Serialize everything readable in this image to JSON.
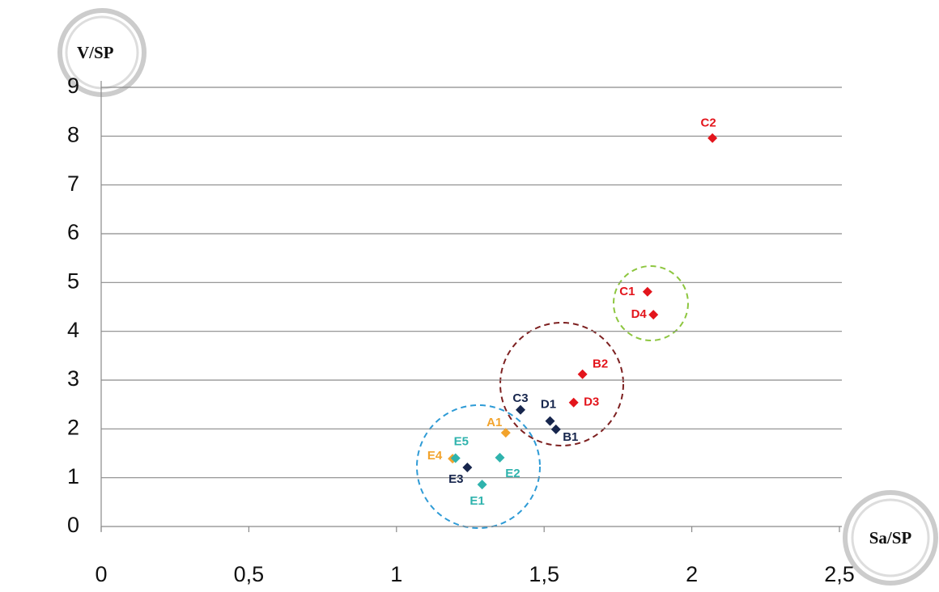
{
  "chart_data": {
    "type": "scatter",
    "x_label": "Sa/SP",
    "y_label": "V/SP",
    "xlim": [
      0,
      2.5
    ],
    "ylim": [
      0,
      9
    ],
    "xticks": [
      0,
      {
        "value": 0.5,
        "label": "0,5"
      },
      1,
      {
        "value": 1.5,
        "label": "1,5"
      },
      2,
      {
        "value": 2.5,
        "label": "2,5"
      }
    ],
    "yticks": [
      0,
      1,
      2,
      3,
      4,
      5,
      6,
      7,
      8,
      9
    ],
    "grid": true,
    "points": [
      {
        "label": "C2",
        "x": 2.07,
        "y": 7.96,
        "color": "#e3151c"
      },
      {
        "label": "C1",
        "x": 1.85,
        "y": 4.81,
        "color": "#e3151c"
      },
      {
        "label": "D4",
        "x": 1.87,
        "y": 4.34,
        "color": "#e3151c"
      },
      {
        "label": "B2",
        "x": 1.63,
        "y": 3.12,
        "color": "#e3151c"
      },
      {
        "label": "D3",
        "x": 1.6,
        "y": 2.54,
        "color": "#e3151c"
      },
      {
        "label": "C3",
        "x": 1.42,
        "y": 2.39,
        "color": "#17264d"
      },
      {
        "label": "D1",
        "x": 1.52,
        "y": 2.16,
        "color": "#17264d"
      },
      {
        "label": "B1",
        "x": 1.54,
        "y": 1.99,
        "color": "#17264d"
      },
      {
        "label": "A1",
        "x": 1.37,
        "y": 1.92,
        "color": "#f2a32c"
      },
      {
        "label": "E4",
        "x": 1.19,
        "y": 1.39,
        "color": "#f2a32c"
      },
      {
        "label": "E5",
        "x": 1.2,
        "y": 1.4,
        "color": "#2fb3ad"
      },
      {
        "label": "E2",
        "x": 1.35,
        "y": 1.41,
        "color": "#2fb3ad"
      },
      {
        "label": "E3",
        "x": 1.24,
        "y": 1.21,
        "color": "#17264d"
      },
      {
        "label": "E1",
        "x": 1.29,
        "y": 0.86,
        "color": "#2fb3ad"
      }
    ]
  }
}
